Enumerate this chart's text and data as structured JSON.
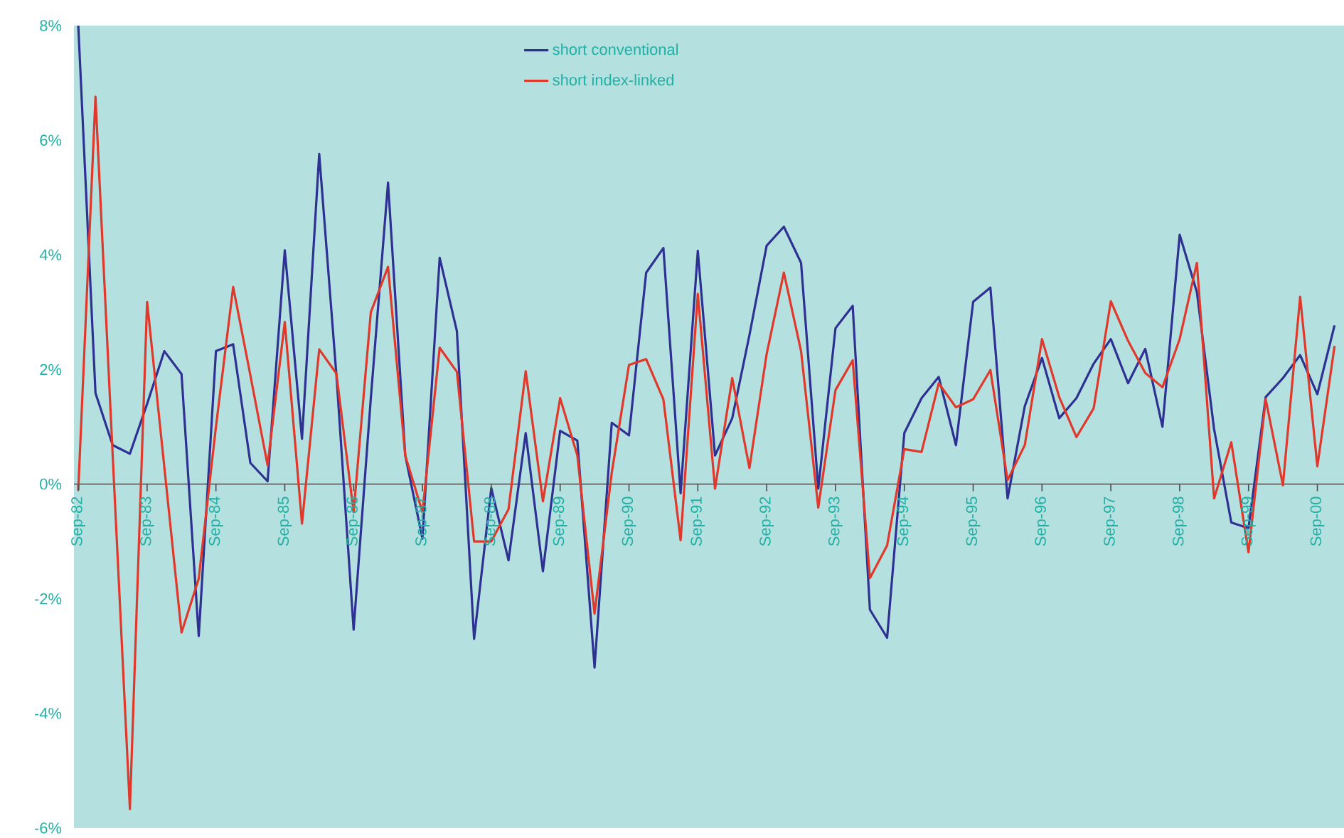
{
  "chart_data": {
    "type": "line",
    "categories": [
      "Sep-82",
      null,
      null,
      null,
      "Sep-83",
      null,
      null,
      null,
      "Sep-84",
      null,
      null,
      null,
      "Sep-85",
      null,
      null,
      null,
      "Sep-86",
      null,
      null,
      null,
      "Sep-87",
      null,
      null,
      null,
      "Sep-88",
      null,
      null,
      null,
      "Sep-89",
      null,
      null,
      null,
      "Sep-90",
      null,
      null,
      null,
      "Sep-91",
      null,
      null,
      null,
      "Sep-92",
      null,
      null,
      null,
      "Sep-93",
      null,
      null,
      null,
      "Sep-94",
      null,
      null,
      null,
      "Sep-95",
      null,
      null,
      null,
      "Sep-96",
      null,
      null,
      null,
      "Sep-97",
      null,
      null,
      null,
      "Sep-98",
      null,
      null,
      null,
      "Sep-99",
      null,
      null,
      null,
      "Sep-00",
      null
    ],
    "series": [
      {
        "name": "short conventional",
        "color": "#2e3192",
        "values": [
          8.0,
          1.59,
          0.68,
          0.53,
          1.4,
          2.32,
          1.92,
          -2.65,
          2.32,
          2.44,
          0.37,
          0.05,
          4.08,
          0.79,
          5.76,
          1.9,
          -2.54,
          1.5,
          5.26,
          0.5,
          -0.95,
          3.95,
          2.67,
          -2.7,
          -0.07,
          -1.33,
          0.89,
          -1.52,
          0.93,
          0.76,
          -3.2,
          1.07,
          0.85,
          3.69,
          4.12,
          -0.16,
          4.07,
          0.5,
          1.15,
          2.6,
          4.16,
          4.49,
          3.86,
          -0.08,
          2.72,
          3.11,
          -2.19,
          -2.68,
          0.89,
          1.5,
          1.87,
          0.68,
          3.18,
          3.43,
          -0.25,
          1.36,
          2.2,
          1.15,
          1.5,
          2.1,
          2.53,
          1.76,
          2.36,
          1.0,
          4.35,
          3.35,
          0.96,
          -0.67,
          -0.77,
          1.52,
          1.85,
          2.25,
          1.57,
          2.77
        ]
      },
      {
        "name": "short index-linked",
        "color": "#e0392b",
        "values": [
          -0.11,
          6.76,
          0.5,
          -5.67,
          3.18,
          0.3,
          -2.59,
          -1.65,
          1.0,
          3.44,
          1.9,
          0.33,
          2.83,
          -0.69,
          2.35,
          1.93,
          -0.49,
          3.0,
          3.79,
          0.5,
          -0.49,
          2.38,
          1.96,
          -1.0,
          -1.0,
          -0.44,
          1.97,
          -0.3,
          1.5,
          0.5,
          -2.26,
          0.2,
          2.08,
          2.18,
          1.48,
          -0.98,
          3.32,
          -0.08,
          1.85,
          0.28,
          2.27,
          3.69,
          2.32,
          -0.41,
          1.64,
          2.16,
          -1.64,
          -1.07,
          0.61,
          0.56,
          1.76,
          1.34,
          1.48,
          1.99,
          0.07,
          0.68,
          2.53,
          1.52,
          0.82,
          1.32,
          3.19,
          2.5,
          1.94,
          1.69,
          2.53,
          3.86,
          -0.25,
          0.73,
          -1.19,
          1.48,
          -0.02,
          3.27,
          0.31,
          2.41
        ]
      }
    ],
    "ylim": [
      -6,
      8
    ],
    "yticks": [
      {
        "value": -6,
        "label": "-6%"
      },
      {
        "value": -4,
        "label": "-4%"
      },
      {
        "value": -2,
        "label": "-2%"
      },
      {
        "value": 0,
        "label": "0%"
      },
      {
        "value": 2,
        "label": "2%"
      },
      {
        "value": 4,
        "label": "4%"
      },
      {
        "value": 6,
        "label": "6%"
      },
      {
        "value": 8,
        "label": "8%"
      }
    ],
    "grid": false,
    "legend": "top",
    "marker": "none",
    "line_style": "solid"
  }
}
